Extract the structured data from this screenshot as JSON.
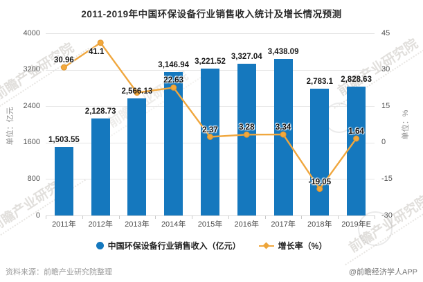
{
  "title": "2011-2019年中国环保设备行业销售收入统计及增长情况预测",
  "chart_data": {
    "type": "bar",
    "subtype": "bar-and-line-combo",
    "categories": [
      "2011年",
      "2012年",
      "2013年",
      "2014年",
      "2015年",
      "2016年",
      "2017年",
      "2018年",
      "2019年E"
    ],
    "series": [
      {
        "name": "中国环保设备行业销售收入（亿元）",
        "type": "bar",
        "axis": "left",
        "color": "#1578be",
        "values": [
          1503.55,
          2128.73,
          2566.13,
          3146.94,
          3221.52,
          3327.04,
          3438.09,
          2783.1,
          2828.63
        ],
        "labels": [
          "1,503.55",
          "2,128.73",
          "2,566.13",
          "3,146.94",
          "3,221.52",
          "3,327.04",
          "3,438.09",
          "2,783.1",
          "2,828.63"
        ]
      },
      {
        "name": "增长率（%）",
        "type": "line",
        "axis": "right",
        "color": "#f0a73e",
        "values": [
          30.96,
          41.1,
          20.55,
          22.63,
          2.37,
          3.28,
          3.34,
          -19.05,
          1.64
        ],
        "labels": [
          "30.96",
          "41.1",
          "",
          "22.63",
          "2.37",
          "3.28",
          "3.34",
          "-19.05",
          "1.64"
        ]
      }
    ],
    "left_axis": {
      "label": "单位：亿元",
      "min": 0,
      "max": 4000,
      "ticks": [
        0,
        800,
        1600,
        2400,
        3200,
        4000
      ]
    },
    "right_axis": {
      "label": "单位：%",
      "min": -30,
      "max": 45,
      "ticks": [
        -30,
        -15,
        0,
        15,
        30,
        45
      ]
    },
    "grid": true,
    "legend_position": "bottom"
  },
  "legend": {
    "items": [
      {
        "label": "中国环保设备行业销售收入（亿元）",
        "marker": "circle",
        "color": "#1578be"
      },
      {
        "label": "增长率（%）",
        "marker": "line-diamond",
        "color": "#f0a73e"
      }
    ]
  },
  "footer": {
    "source": "资料来源：前瞻产业研究院整理",
    "credit": "@前瞻经济学人APP"
  },
  "watermark": {
    "text": "前瞻产业研究院"
  }
}
